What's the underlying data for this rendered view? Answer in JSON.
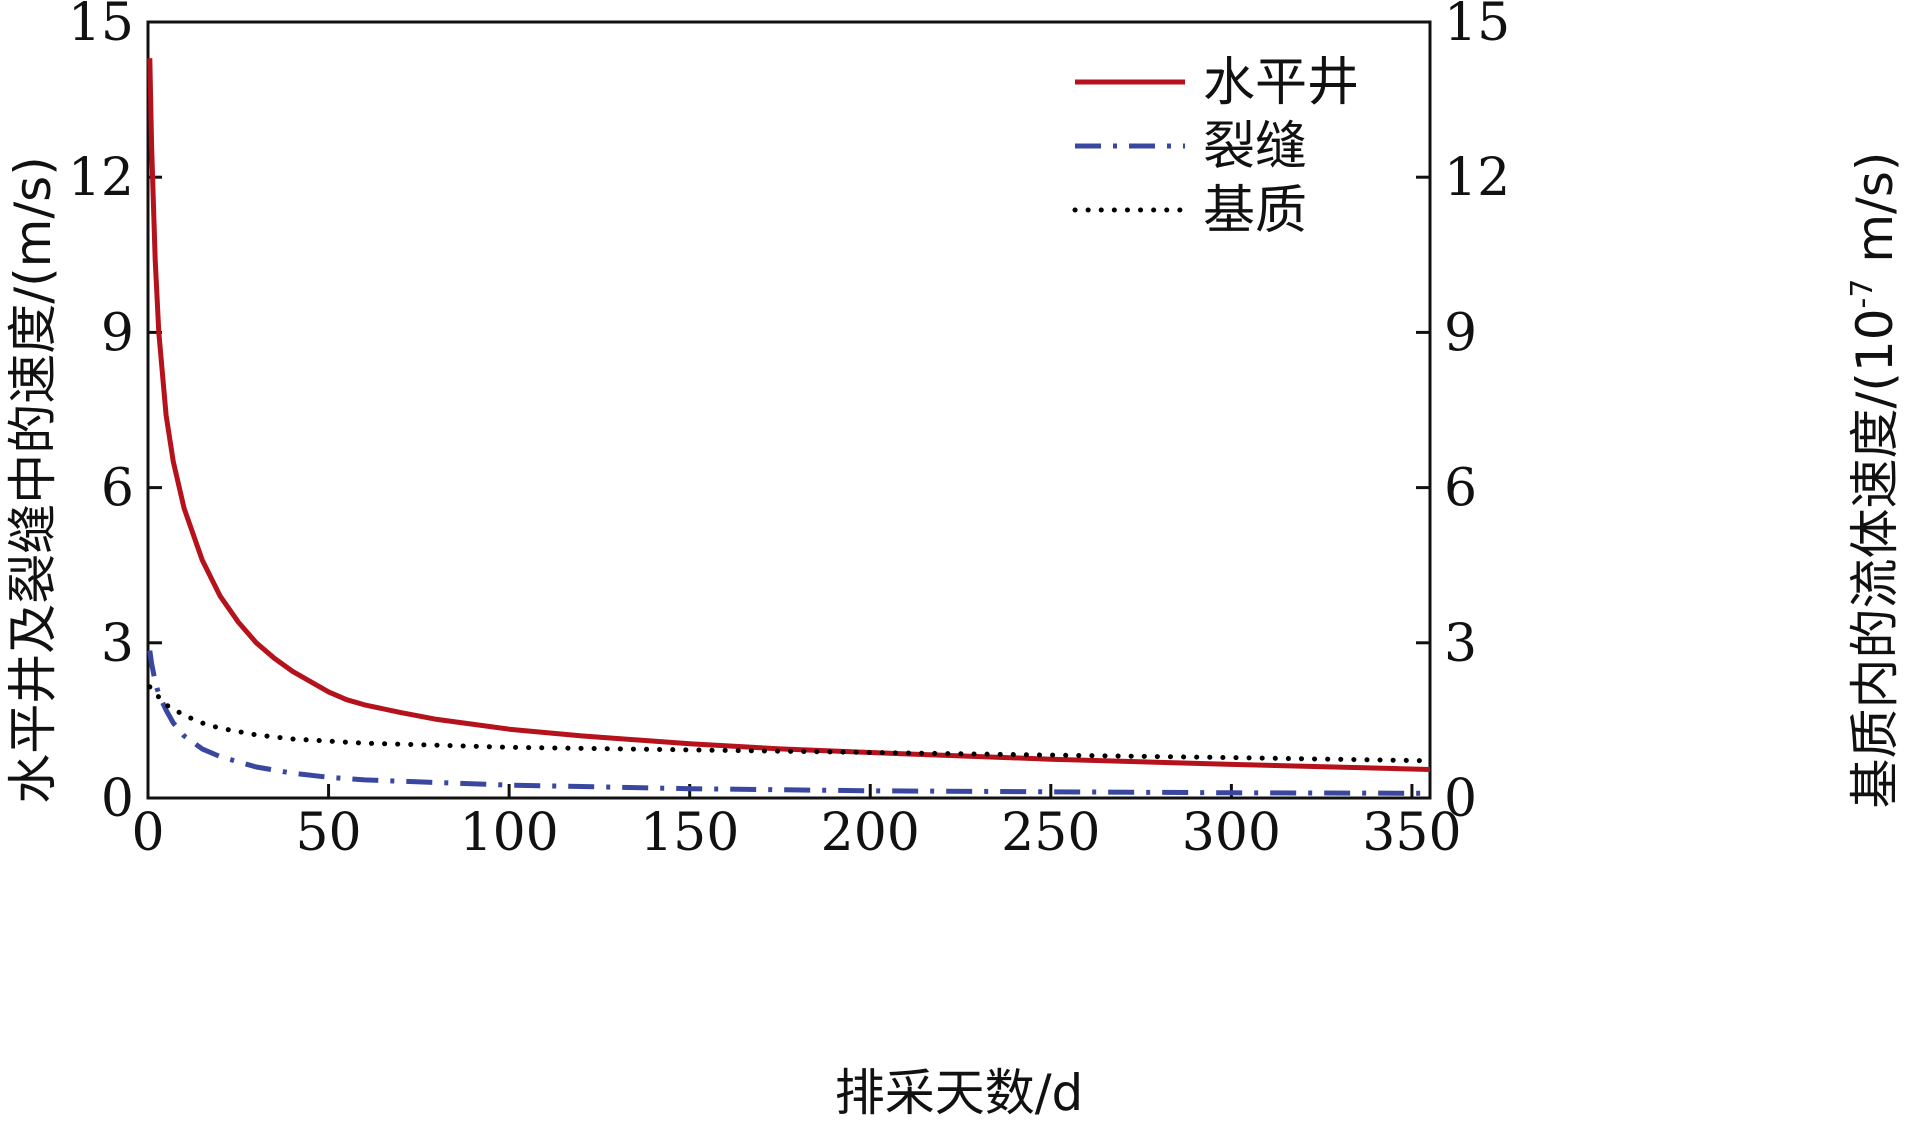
{
  "chart_data": {
    "type": "line",
    "xlabel": "排采天数/d",
    "ylabel_left": "水平井及裂缝中的速度/(m/s)",
    "ylabel_right_prefix": "基质内的流体速度/(10",
    "ylabel_right_exp": "-7",
    "ylabel_right_suffix": " m/s)",
    "xlim": [
      0,
      355
    ],
    "ylim_left": [
      0,
      15
    ],
    "ylim_right": [
      0,
      15
    ],
    "x_ticks": [
      "0",
      "50",
      "100",
      "150",
      "200",
      "250",
      "300",
      "350"
    ],
    "x_tick_values": [
      0,
      50,
      100,
      150,
      200,
      250,
      300,
      350
    ],
    "y_ticks_left": [
      "0",
      "3",
      "6",
      "9",
      "12",
      "15"
    ],
    "y_ticks_right": [
      "0",
      "3",
      "6",
      "9",
      "12",
      "15"
    ],
    "y_tick_values": [
      0,
      3,
      6,
      9,
      12,
      15
    ],
    "grid": false,
    "legend_position": "top-right",
    "series": [
      {
        "name": "水平井",
        "axis": "left",
        "color": "#b5121b",
        "style": "solid",
        "x": [
          0.5,
          1,
          2,
          3,
          5,
          7,
          10,
          15,
          20,
          25,
          30,
          35,
          40,
          50,
          55,
          60,
          70,
          80,
          100,
          120,
          150,
          175,
          200,
          250,
          300,
          355
        ],
        "y": [
          14.3,
          12.6,
          10.4,
          9.0,
          7.4,
          6.5,
          5.6,
          4.6,
          3.9,
          3.4,
          3.0,
          2.7,
          2.45,
          2.05,
          1.9,
          1.8,
          1.65,
          1.52,
          1.33,
          1.2,
          1.05,
          0.95,
          0.88,
          0.75,
          0.65,
          0.55
        ]
      },
      {
        "name": "裂缝",
        "axis": "left",
        "color": "#3a47a0",
        "style": "dashdot",
        "x": [
          0.5,
          1,
          2,
          3,
          5,
          7,
          10,
          15,
          20,
          30,
          40,
          50,
          60,
          80,
          100,
          150,
          200,
          250,
          300,
          355
        ],
        "y": [
          2.85,
          2.6,
          2.25,
          2.0,
          1.7,
          1.45,
          1.2,
          0.95,
          0.8,
          0.6,
          0.48,
          0.4,
          0.35,
          0.3,
          0.25,
          0.18,
          0.14,
          0.12,
          0.1,
          0.09
        ]
      },
      {
        "name": "基质",
        "axis": "right",
        "color": "#000000",
        "style": "dotted",
        "x": [
          0.5,
          1,
          3,
          5,
          10,
          15,
          20,
          30,
          40,
          60,
          80,
          100,
          150,
          200,
          250,
          300,
          355
        ],
        "y": [
          2.15,
          2.1,
          1.95,
          1.8,
          1.6,
          1.45,
          1.35,
          1.22,
          1.14,
          1.06,
          1.02,
          0.98,
          0.93,
          0.88,
          0.83,
          0.78,
          0.72
        ]
      }
    ]
  }
}
